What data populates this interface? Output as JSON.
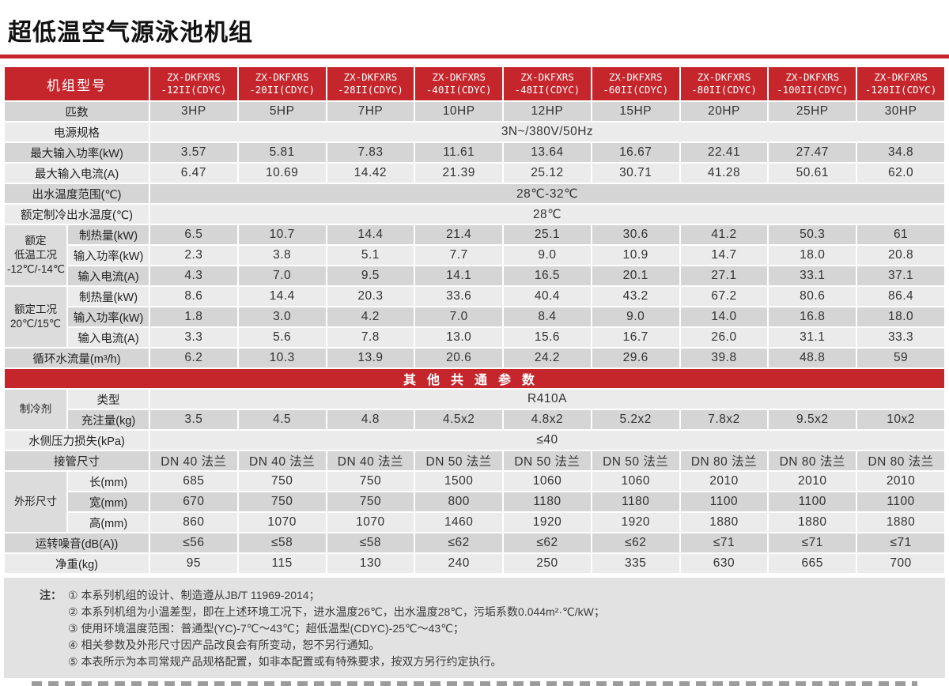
{
  "title": "超低温空气源泳池机组",
  "colors": {
    "accent_red": "#c5262c",
    "row_dark": "#d5d5d5",
    "row_light": "#ebebeb"
  },
  "table": {
    "header": {
      "label": "机组型号",
      "models": [
        "ZX-DKFXRS\n-12II(CDYC)",
        "ZX-DKFXRS\n-20II(CDYC)",
        "ZX-DKFXRS\n-28II(CDYC)",
        "ZX-DKFXRS\n-40II(CDYC)",
        "ZX-DKFXRS\n-48II(CDYC)",
        "ZX-DKFXRS\n-60II(CDYC)",
        "ZX-DKFXRS\n-80II(CDYC)",
        "ZX-DKFXRS\n-100II(CDYC)",
        "ZX-DKFXRS\n-120II(CDYC)"
      ]
    },
    "rows": [
      {
        "type": "data",
        "label": "匹数",
        "values": [
          "3HP",
          "5HP",
          "7HP",
          "10HP",
          "12HP",
          "15HP",
          "20HP",
          "25HP",
          "30HP"
        ]
      },
      {
        "type": "span",
        "label": "电源规格",
        "value": "3N~/380V/50Hz"
      },
      {
        "type": "data",
        "label": "最大输入功率(kW)",
        "values": [
          "3.57",
          "5.81",
          "7.83",
          "11.61",
          "13.64",
          "16.67",
          "22.41",
          "27.47",
          "34.8"
        ]
      },
      {
        "type": "data",
        "label": "最大输入电流(A)",
        "values": [
          "6.47",
          "10.69",
          "14.42",
          "21.39",
          "25.12",
          "30.71",
          "41.28",
          "50.61",
          "62.0"
        ]
      },
      {
        "type": "span",
        "label": "出水温度范围(℃)",
        "value": "28℃-32℃"
      },
      {
        "type": "span",
        "label": "额定制冷出水温度(℃)",
        "value": "28℃"
      },
      {
        "type": "group",
        "label": "额定\n低温工况\n-12℃/-14℃",
        "subrows": [
          {
            "label": "制热量(kW)",
            "values": [
              "6.5",
              "10.7",
              "14.4",
              "21.4",
              "25.1",
              "30.6",
              "41.2",
              "50.3",
              "61"
            ]
          },
          {
            "label": "输入功率(kW)",
            "values": [
              "2.3",
              "3.8",
              "5.1",
              "7.7",
              "9.0",
              "10.9",
              "14.7",
              "18.0",
              "20.8"
            ]
          },
          {
            "label": "输入电流(A)",
            "values": [
              "4.3",
              "7.0",
              "9.5",
              "14.1",
              "16.5",
              "20.1",
              "27.1",
              "33.1",
              "37.1"
            ]
          }
        ]
      },
      {
        "type": "group",
        "label": "额定工况\n20℃/15℃",
        "subrows": [
          {
            "label": "制热量(kW)",
            "values": [
              "8.6",
              "14.4",
              "20.3",
              "33.6",
              "40.4",
              "43.2",
              "67.2",
              "80.6",
              "86.4"
            ]
          },
          {
            "label": "输入功率(kW)",
            "values": [
              "1.8",
              "3.0",
              "4.2",
              "7.0",
              "8.4",
              "9.0",
              "14.0",
              "16.8",
              "18.0"
            ]
          },
          {
            "label": "输入电流(A)",
            "values": [
              "3.3",
              "5.6",
              "7.8",
              "13.0",
              "15.6",
              "16.7",
              "26.0",
              "31.1",
              "33.3"
            ]
          }
        ]
      },
      {
        "type": "data",
        "label": "循环水流量(m³/h)",
        "values": [
          "6.2",
          "10.3",
          "13.9",
          "20.6",
          "24.2",
          "29.6",
          "39.8",
          "48.8",
          "59"
        ]
      },
      {
        "type": "band",
        "label": "其他共通参数"
      },
      {
        "type": "group",
        "label": "制冷剂",
        "subrows": [
          {
            "label": "类型",
            "span": "R410A"
          },
          {
            "label": "充注量(kg)",
            "values": [
              "3.5",
              "4.5",
              "4.8",
              "4.5x2",
              "4.8x2",
              "5.2x2",
              "7.8x2",
              "9.5x2",
              "10x2"
            ]
          }
        ]
      },
      {
        "type": "span",
        "label": "水侧压力损失(kPa)",
        "value": "≤40"
      },
      {
        "type": "data",
        "label": "接管尺寸",
        "values": [
          "DN 40 法兰",
          "DN 40 法兰",
          "DN 40 法兰",
          "DN 50 法兰",
          "DN 50 法兰",
          "DN 50 法兰",
          "DN 80 法兰",
          "DN 80 法兰",
          "DN 80 法兰"
        ]
      },
      {
        "type": "group",
        "label": "外形尺寸",
        "subrows": [
          {
            "label": "长(mm)",
            "values": [
              "685",
              "750",
              "750",
              "1500",
              "1060",
              "1060",
              "2010",
              "2010",
              "2010"
            ]
          },
          {
            "label": "宽(mm)",
            "values": [
              "670",
              "750",
              "750",
              "800",
              "1180",
              "1180",
              "1100",
              "1100",
              "1100"
            ]
          },
          {
            "label": "高(mm)",
            "values": [
              "860",
              "1070",
              "1070",
              "1460",
              "1920",
              "1920",
              "1880",
              "1880",
              "1880"
            ]
          }
        ]
      },
      {
        "type": "data",
        "label": "运转噪音(dB(A))",
        "values": [
          "≤56",
          "≤58",
          "≤58",
          "≤62",
          "≤62",
          "≤62",
          "≤71",
          "≤71",
          "≤71"
        ]
      },
      {
        "type": "data",
        "label": "净重(kg)",
        "values": [
          "95",
          "115",
          "130",
          "240",
          "250",
          "335",
          "630",
          "665",
          "700"
        ]
      }
    ]
  },
  "notes": {
    "prefix": "注：",
    "items": [
      "① 本系列机组的设计、制造遵从JB/T 11969-2014；",
      "② 本系列机组为小温差型，即在上述环境工况下，进水温度26℃，出水温度28℃，污垢系数0.044m²·℃/kW；",
      "③ 使用环境温度范围：普通型(YC)-7℃～43℃；超低温型(CDYC)-25℃～43℃；",
      "④ 相关参数及外形尺寸因产品改良会有所变动，恕不另行通知。",
      "⑤ 本表所示为本司常规产品规格配置，如非本配置或有特殊要求，按双方另行约定执行。"
    ]
  }
}
